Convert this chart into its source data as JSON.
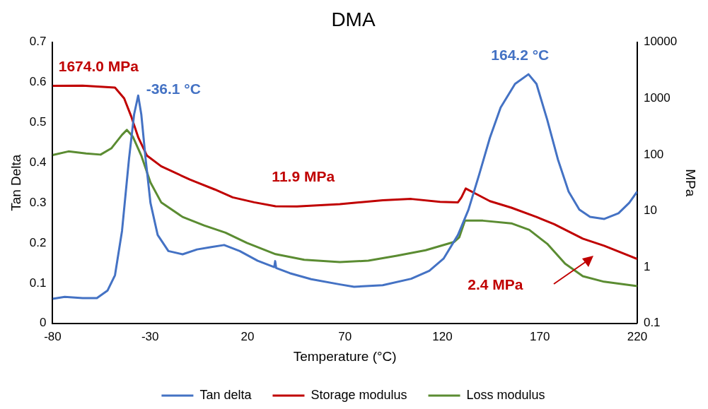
{
  "chart_data": {
    "type": "line",
    "title": "DMA",
    "xlabel": "Temperature (°C)",
    "ylabel": "Tan Delta",
    "y2label": "MPa",
    "xlim": [
      -80,
      220
    ],
    "xticks": [
      -80,
      -30,
      20,
      70,
      120,
      170,
      220
    ],
    "ylim": [
      0,
      0.7
    ],
    "yticks": [
      0,
      0.1,
      0.2,
      0.3,
      0.4,
      0.5,
      0.6,
      0.7
    ],
    "y2lim": [
      0.1,
      10000
    ],
    "y2ticks": [
      0.1,
      1,
      10,
      100,
      1000,
      10000
    ],
    "log": "y2",
    "grid": false,
    "legend": "bottom",
    "marker": "none",
    "line_style": "solid",
    "annotations": [
      "1674.0 MPa",
      "-36.1 °C",
      "11.9 MPa",
      "164.2 °C",
      "2.4 MPa"
    ],
    "series": [
      {
        "name": "Tan delta",
        "color": "#4472c4",
        "x": [
          -80,
          -73.8,
          -64.6,
          -57.3,
          -51.8,
          -48,
          -44.4,
          -40.8,
          -38.2,
          -36.1,
          -34.5,
          -32.3,
          -29.8,
          -26.1,
          -20.6,
          -13.3,
          -5.9,
          1.4,
          8,
          16,
          25.2,
          33.7,
          34.2,
          34.7,
          41.7,
          52.7,
          67.4,
          74.7,
          89.4,
          104,
          113.3,
          120.6,
          128,
          133.4,
          139,
          144.4,
          149.9,
          157.3,
          164.2,
          168.3,
          173.8,
          179.3,
          184.8,
          190.3,
          195.8,
          203.1,
          210.4,
          215.9,
          220
        ],
        "values": [
          0.061,
          0.066,
          0.063,
          0.063,
          0.082,
          0.12,
          0.23,
          0.41,
          0.52,
          0.567,
          0.52,
          0.41,
          0.3,
          0.22,
          0.18,
          0.172,
          0.184,
          0.19,
          0.195,
          0.18,
          0.156,
          0.14,
          0.155,
          0.138,
          0.125,
          0.11,
          0.097,
          0.091,
          0.095,
          0.111,
          0.131,
          0.161,
          0.22,
          0.283,
          0.372,
          0.462,
          0.537,
          0.596,
          0.62,
          0.596,
          0.507,
          0.408,
          0.328,
          0.283,
          0.265,
          0.26,
          0.274,
          0.3,
          0.328
        ]
      },
      {
        "name": "Storage modulus",
        "color": "#c00000",
        "axis": "y2",
        "x": [
          -80,
          -64.6,
          -48,
          -43.3,
          -39.7,
          -36,
          -31.6,
          -24.3,
          -9.6,
          3.2,
          12.4,
          23.4,
          34.4,
          45.4,
          67.4,
          89.4,
          104,
          118.8,
          128,
          129.8,
          132,
          137.3,
          144.4,
          155.4,
          168.3,
          177.4,
          192.1,
          203,
          220
        ],
        "values": [
          1674,
          1680,
          1550,
          1000,
          480,
          200,
          96,
          62,
          36,
          24,
          17.4,
          14.2,
          12.1,
          12,
          13.2,
          15.4,
          16.3,
          14.5,
          14.2,
          17.4,
          25,
          20,
          14.9,
          11.4,
          7.8,
          5.8,
          3.2,
          2.4,
          1.4
        ]
      },
      {
        "name": "Loss modulus",
        "color": "#5b8c32",
        "axis": "y2",
        "x": [
          -80,
          -71.9,
          -62.8,
          -55.4,
          -49.9,
          -44.4,
          -41.9,
          -38.9,
          -34.5,
          -29.8,
          -24.3,
          -13.3,
          -2.3,
          8.7,
          19.7,
          34.4,
          49.1,
          67.4,
          82,
          96.7,
          111.4,
          126,
          128.7,
          131.6,
          140.8,
          155.4,
          164.6,
          173.8,
          183,
          192.1,
          203,
          220
        ],
        "values": [
          98,
          114,
          105,
          100,
          129,
          225,
          275,
          210,
          96,
          32,
          14.2,
          7.8,
          5.5,
          4.1,
          2.7,
          1.7,
          1.35,
          1.23,
          1.3,
          1.6,
          2,
          2.8,
          3.4,
          6.7,
          6.7,
          6,
          4.6,
          2.6,
          1.15,
          0.69,
          0.55,
          0.46
        ]
      }
    ]
  }
}
